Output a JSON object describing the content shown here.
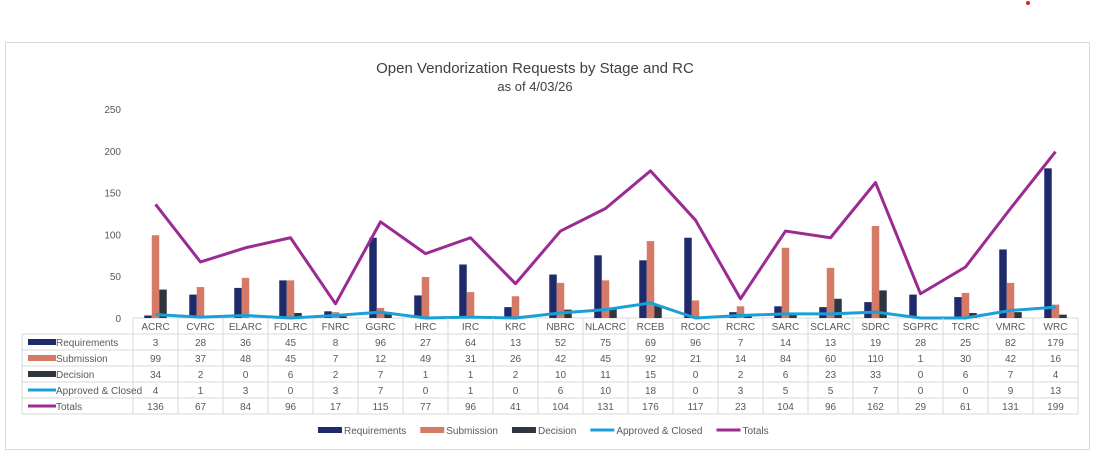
{
  "chart_data": {
    "type": "bar",
    "title": "Open Vendorization Requests by Stage and RC",
    "subtitle": "as of 4/03/26",
    "ylim": [
      0,
      250
    ],
    "yticks": [
      0,
      50,
      100,
      150,
      200,
      250
    ],
    "grid": false,
    "legend_position": "bottom",
    "data_table": true,
    "categories": [
      "ACRC",
      "CVRC",
      "ELARC",
      "FDLRC",
      "FNRC",
      "GGRC",
      "HRC",
      "IRC",
      "KRC",
      "NBRC",
      "NLACRC",
      "RCEB",
      "RCOC",
      "RCRC",
      "SARC",
      "SCLARC",
      "SDRC",
      "SGPRC",
      "TCRC",
      "VMRC",
      "WRC"
    ],
    "series": [
      {
        "name": "Requirements",
        "kind": "bar",
        "color": "#1f2a6b",
        "values": [
          3,
          28,
          36,
          45,
          8,
          96,
          27,
          64,
          13,
          52,
          75,
          69,
          96,
          7,
          14,
          13,
          19,
          28,
          25,
          82,
          179
        ]
      },
      {
        "name": "Submission",
        "kind": "bar",
        "color": "#d47a67",
        "values": [
          99,
          37,
          48,
          45,
          7,
          12,
          49,
          31,
          26,
          42,
          45,
          92,
          21,
          14,
          84,
          60,
          110,
          1,
          30,
          42,
          16
        ]
      },
      {
        "name": "Decision",
        "kind": "bar",
        "color": "#2f3640",
        "values": [
          34,
          2,
          0,
          6,
          2,
          7,
          1,
          1,
          2,
          10,
          11,
          15,
          0,
          2,
          6,
          23,
          33,
          0,
          6,
          7,
          4
        ]
      },
      {
        "name": "Approved & Closed",
        "kind": "line",
        "color": "#1aa0d8",
        "values": [
          4,
          1,
          3,
          0,
          3,
          7,
          0,
          1,
          0,
          6,
          10,
          18,
          0,
          3,
          5,
          5,
          7,
          0,
          0,
          9,
          13
        ]
      },
      {
        "name": "Totals",
        "kind": "line",
        "color": "#9b2a93",
        "values": [
          136,
          67,
          84,
          96,
          17,
          115,
          77,
          96,
          41,
          104,
          131,
          176,
          117,
          23,
          104,
          96,
          162,
          29,
          61,
          131,
          199
        ]
      }
    ]
  }
}
